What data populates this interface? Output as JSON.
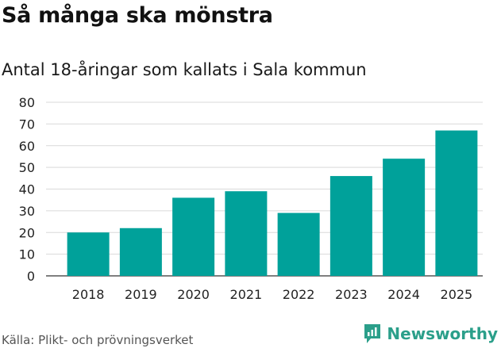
{
  "header": {
    "title": "Så många ska mönstra",
    "subtitle": "Antal 18-åringar som kallats i Sala kommun"
  },
  "footer": {
    "source": "Källa: Plikt- och prövningsverket",
    "brand": "Newsworthy"
  },
  "colors": {
    "bar": "#00a19a",
    "grid": "#d9d9d9",
    "brand": "#2b9f8a"
  },
  "chart_data": {
    "type": "bar",
    "title": "Så många ska mönstra",
    "subtitle": "Antal 18-åringar som kallats i Sala kommun",
    "xlabel": "",
    "ylabel": "",
    "categories": [
      "2018",
      "2019",
      "2020",
      "2021",
      "2022",
      "2023",
      "2024",
      "2025"
    ],
    "values": [
      20,
      22,
      36,
      39,
      29,
      46,
      54,
      67
    ],
    "ylim": [
      0,
      80
    ],
    "yticks": [
      0,
      10,
      20,
      30,
      40,
      50,
      60,
      70,
      80
    ],
    "grid": true,
    "legend": "none"
  }
}
